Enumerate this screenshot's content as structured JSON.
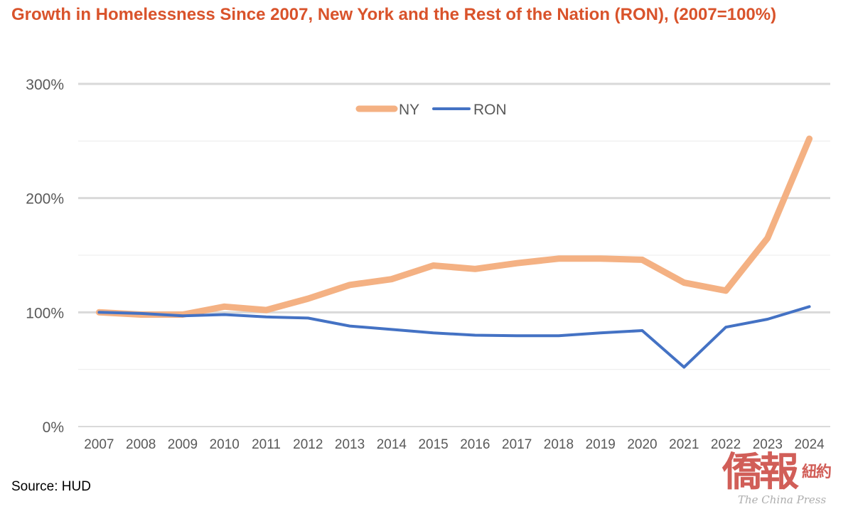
{
  "chart_data": {
    "type": "line",
    "title": "Growth in Homelessness Since 2007, New York and the Rest of the Nation (RON), (2007=100%)",
    "x": [
      "2007",
      "2008",
      "2009",
      "2010",
      "2011",
      "2012",
      "2013",
      "2014",
      "2015",
      "2016",
      "2017",
      "2018",
      "2019",
      "2020",
      "2021",
      "2022",
      "2023",
      "2024"
    ],
    "series": [
      {
        "name": "NY",
        "color": "#f4b183",
        "values": [
          100,
          98,
          98,
          105,
          102,
          112,
          124,
          129,
          141,
          138,
          143,
          147,
          147,
          146,
          126,
          119,
          165,
          252
        ]
      },
      {
        "name": "RON",
        "color": "#4472c4",
        "values": [
          100,
          99,
          97,
          98,
          96,
          95,
          88,
          85,
          82,
          80,
          79.5,
          79.5,
          82,
          84,
          52,
          87,
          94,
          105
        ]
      }
    ],
    "yticks": [
      "0%",
      "100%",
      "200%",
      "300%"
    ],
    "ylim": [
      0,
      300
    ],
    "grid": true,
    "legend": "top-center"
  },
  "source": "Source: HUD",
  "watermark": {
    "main": "僑報",
    "sub": "紐約",
    "en": "The China Press"
  }
}
